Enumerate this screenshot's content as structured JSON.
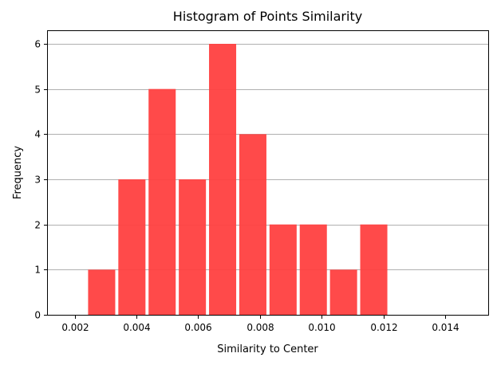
{
  "chart_data": {
    "type": "bar",
    "title": "Histogram of Points Similarity",
    "xlabel": "Similarity to Center",
    "ylabel": "Frequency",
    "xlim": [
      0.0011,
      0.0154
    ],
    "ylim": [
      0,
      6.3
    ],
    "xticks": [
      0.002,
      0.004,
      0.006,
      0.008,
      0.01,
      0.012,
      0.014
    ],
    "xtick_labels": [
      "0.002",
      "0.004",
      "0.006",
      "0.008",
      "0.010",
      "0.012",
      "0.014"
    ],
    "yticks": [
      0,
      1,
      2,
      3,
      4,
      5,
      6
    ],
    "ytick_labels": [
      "0",
      "1",
      "2",
      "3",
      "4",
      "5",
      "6"
    ],
    "bar_width": 0.00088,
    "x": [
      0.00243,
      0.00341,
      0.00439,
      0.00537,
      0.00635,
      0.00733,
      0.00831,
      0.00929,
      0.01027,
      0.01125
    ],
    "values": [
      1,
      3,
      5,
      3,
      6,
      4,
      2,
      2,
      1,
      2
    ],
    "grid": "horizontal",
    "legend": "none",
    "colors": {
      "bar": "#ff4040",
      "grid": "#b0b0b0",
      "axis": "#000000"
    }
  }
}
